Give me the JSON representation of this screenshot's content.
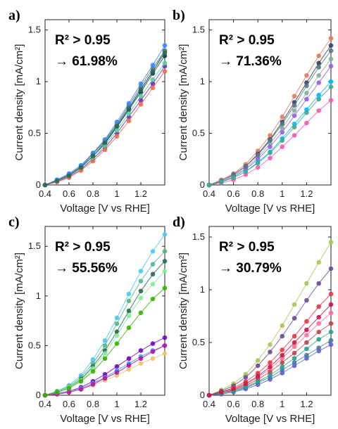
{
  "chart_data": [
    {
      "panel": "a)",
      "type": "scatter",
      "xlabel": "Voltage [V vs RHE]",
      "ylabel": "Current density [mA/cm²]",
      "xlim": [
        0.4,
        1.4
      ],
      "ylim": [
        0,
        1.6
      ],
      "xticks": [
        "0.4",
        "0.6",
        "0.8",
        "1",
        "1.2"
      ],
      "xtick_values": [
        0.4,
        0.6,
        0.8,
        1.0,
        1.2
      ],
      "yticks": [
        "0",
        "0.5",
        "1",
        "1.5"
      ],
      "ytick_values": [
        0,
        0.5,
        1.0,
        1.5
      ],
      "annotation_r2": "R² > 0.95",
      "annotation_pct": "→ 61.98%",
      "x": [
        0.4,
        0.5,
        0.6,
        0.7,
        0.8,
        0.9,
        1.0,
        1.1,
        1.2,
        1.3,
        1.4
      ],
      "series": [
        {
          "color": "#2a9d8f",
          "values": [
            0.0,
            0.05,
            0.1,
            0.18,
            0.3,
            0.42,
            0.58,
            0.75,
            0.93,
            1.1,
            1.3
          ]
        },
        {
          "color": "#1d3557",
          "values": [
            0.0,
            0.04,
            0.09,
            0.17,
            0.28,
            0.4,
            0.56,
            0.73,
            0.9,
            1.08,
            1.25
          ]
        },
        {
          "color": "#7b2cbf",
          "values": [
            0.0,
            0.03,
            0.08,
            0.15,
            0.25,
            0.36,
            0.5,
            0.66,
            0.82,
            0.98,
            1.15
          ]
        },
        {
          "color": "#57cc99",
          "values": [
            0.0,
            0.04,
            0.09,
            0.16,
            0.26,
            0.38,
            0.53,
            0.69,
            0.86,
            1.02,
            1.18
          ]
        },
        {
          "color": "#6c757d",
          "values": [
            0.0,
            0.04,
            0.1,
            0.18,
            0.3,
            0.43,
            0.59,
            0.77,
            0.95,
            1.13,
            1.3
          ]
        },
        {
          "color": "#e76f51",
          "values": [
            0.0,
            0.03,
            0.07,
            0.14,
            0.23,
            0.34,
            0.47,
            0.62,
            0.78,
            0.94,
            1.1
          ]
        },
        {
          "color": "#3a86ff",
          "values": [
            0.0,
            0.05,
            0.11,
            0.19,
            0.31,
            0.44,
            0.61,
            0.79,
            0.98,
            1.16,
            1.35
          ]
        },
        {
          "color": "#2d6a4f",
          "values": [
            0.0,
            0.04,
            0.09,
            0.17,
            0.28,
            0.41,
            0.57,
            0.74,
            0.92,
            1.1,
            1.28
          ]
        }
      ]
    },
    {
      "panel": "b)",
      "type": "scatter",
      "xlabel": "Voltage [V vs RHE]",
      "ylabel": "Current density [mA/cm²]",
      "xlim": [
        0.4,
        1.4
      ],
      "ylim": [
        0,
        1.6
      ],
      "xticks": [
        "0.4",
        "0.6",
        "0.8",
        "1",
        "1.2"
      ],
      "xtick_values": [
        0.4,
        0.6,
        0.8,
        1.0,
        1.2
      ],
      "yticks": [
        "0",
        "0.5",
        "1",
        "1.5"
      ],
      "ytick_values": [
        0,
        0.5,
        1.0,
        1.5
      ],
      "annotation_r2": "R² > 0.95",
      "annotation_pct": "→ 71.36%",
      "x": [
        0.4,
        0.5,
        0.6,
        0.7,
        0.8,
        0.9,
        1.0,
        1.1,
        1.2,
        1.3,
        1.4
      ],
      "series": [
        {
          "color": "#e07a5f",
          "values": [
            0.0,
            0.05,
            0.11,
            0.2,
            0.33,
            0.48,
            0.66,
            0.86,
            1.06,
            1.25,
            1.42
          ]
        },
        {
          "color": "#3d405b",
          "values": [
            0.0,
            0.04,
            0.1,
            0.18,
            0.3,
            0.44,
            0.61,
            0.8,
            0.99,
            1.18,
            1.35
          ]
        },
        {
          "color": "#81b29a",
          "values": [
            0.0,
            0.04,
            0.09,
            0.16,
            0.27,
            0.4,
            0.55,
            0.72,
            0.89,
            1.06,
            1.22
          ]
        },
        {
          "color": "#9b5de5",
          "values": [
            0.0,
            0.03,
            0.08,
            0.15,
            0.25,
            0.37,
            0.51,
            0.67,
            0.83,
            0.99,
            1.15
          ]
        },
        {
          "color": "#f15bb5",
          "values": [
            0.0,
            0.02,
            0.05,
            0.1,
            0.17,
            0.26,
            0.37,
            0.48,
            0.6,
            0.72,
            0.82
          ]
        },
        {
          "color": "#00bbf9",
          "values": [
            0.0,
            0.03,
            0.07,
            0.13,
            0.22,
            0.32,
            0.45,
            0.59,
            0.73,
            0.87,
            1.0
          ]
        },
        {
          "color": "#577590",
          "values": [
            0.0,
            0.04,
            0.1,
            0.18,
            0.29,
            0.43,
            0.59,
            0.77,
            0.96,
            1.14,
            1.3
          ]
        },
        {
          "color": "#43aa8b",
          "values": [
            0.0,
            0.03,
            0.07,
            0.13,
            0.21,
            0.31,
            0.43,
            0.56,
            0.7,
            0.83,
            0.95
          ]
        }
      ]
    },
    {
      "panel": "c)",
      "type": "scatter",
      "xlabel": "Voltage [V vs RHE]",
      "ylabel": "Current density [mA/cm²]",
      "xlim": [
        0.4,
        1.4
      ],
      "ylim": [
        0,
        1.7
      ],
      "xticks": [
        "0.4",
        "0.6",
        "0.8",
        "1",
        "1.2"
      ],
      "xtick_values": [
        0.4,
        0.6,
        0.8,
        1.0,
        1.2
      ],
      "yticks": [
        "0",
        "0.5",
        "1",
        "1.5"
      ],
      "ytick_values": [
        0,
        0.5,
        1.0,
        1.5
      ],
      "annotation_r2": "R² > 0.95",
      "annotation_pct": "→ 55.56%",
      "x": [
        0.4,
        0.5,
        0.6,
        0.7,
        0.8,
        0.9,
        1.0,
        1.1,
        1.2,
        1.3,
        1.4
      ],
      "series": [
        {
          "color": "#4cc9f0",
          "values": [
            0.0,
            0.04,
            0.1,
            0.2,
            0.36,
            0.55,
            0.78,
            1.02,
            1.25,
            1.45,
            1.62
          ]
        },
        {
          "color": "#52b788",
          "values": [
            0.0,
            0.04,
            0.09,
            0.18,
            0.32,
            0.5,
            0.72,
            0.95,
            1.15,
            1.32,
            1.45
          ]
        },
        {
          "color": "#2d6a4f",
          "values": [
            0.0,
            0.03,
            0.08,
            0.16,
            0.29,
            0.45,
            0.64,
            0.85,
            1.05,
            1.22,
            1.35
          ]
        },
        {
          "color": "#80ed99",
          "values": [
            0.0,
            0.03,
            0.08,
            0.15,
            0.27,
            0.42,
            0.6,
            0.8,
            0.98,
            1.12,
            1.25
          ]
        },
        {
          "color": "#7209b7",
          "values": [
            0.0,
            0.02,
            0.04,
            0.08,
            0.14,
            0.21,
            0.29,
            0.37,
            0.45,
            0.52,
            0.58
          ]
        },
        {
          "color": "#4895ef",
          "values": [
            0.0,
            0.02,
            0.04,
            0.07,
            0.12,
            0.18,
            0.25,
            0.32,
            0.39,
            0.45,
            0.5
          ]
        },
        {
          "color": "#e9c46a",
          "values": [
            0.0,
            0.01,
            0.03,
            0.06,
            0.1,
            0.15,
            0.2,
            0.26,
            0.32,
            0.37,
            0.42
          ]
        },
        {
          "color": "#b5179e",
          "values": [
            0.0,
            0.01,
            0.03,
            0.06,
            0.11,
            0.17,
            0.23,
            0.3,
            0.37,
            0.44,
            0.5
          ]
        },
        {
          "color": "#38b000",
          "values": [
            0.0,
            0.03,
            0.07,
            0.14,
            0.24,
            0.37,
            0.52,
            0.68,
            0.83,
            0.97,
            1.08
          ]
        }
      ]
    },
    {
      "panel": "d)",
      "type": "scatter",
      "xlabel": "Voltage [V vs RHE]",
      "ylabel": "Current density [mA/cm²]",
      "xlim": [
        0.4,
        1.4
      ],
      "ylim": [
        0,
        1.6
      ],
      "xticks": [
        "0.4",
        "0.6",
        "0.8",
        "1",
        "1.2"
      ],
      "xtick_values": [
        0.4,
        0.6,
        0.8,
        1.0,
        1.2
      ],
      "yticks": [
        "0",
        "0.5",
        "1",
        "1.5"
      ],
      "ytick_values": [
        0,
        0.5,
        1.0,
        1.5
      ],
      "annotation_r2": "R² > 0.95",
      "annotation_pct": "→ 30.79%",
      "x": [
        0.4,
        0.5,
        0.6,
        0.7,
        0.8,
        0.9,
        1.0,
        1.1,
        1.2,
        1.3,
        1.4
      ],
      "series": [
        {
          "color": "#a7c957",
          "values": [
            0.0,
            0.05,
            0.11,
            0.2,
            0.33,
            0.48,
            0.66,
            0.86,
            1.06,
            1.26,
            1.45
          ]
        },
        {
          "color": "#6a4c93",
          "values": [
            0.0,
            0.04,
            0.09,
            0.17,
            0.28,
            0.41,
            0.56,
            0.73,
            0.9,
            1.06,
            1.2
          ]
        },
        {
          "color": "#e63946",
          "values": [
            0.0,
            0.03,
            0.07,
            0.13,
            0.21,
            0.31,
            0.43,
            0.56,
            0.7,
            0.84,
            0.96
          ]
        },
        {
          "color": "#ff6b9d",
          "values": [
            0.0,
            0.02,
            0.05,
            0.1,
            0.17,
            0.25,
            0.35,
            0.46,
            0.57,
            0.68,
            0.78
          ]
        },
        {
          "color": "#457b9d",
          "values": [
            0.0,
            0.02,
            0.04,
            0.07,
            0.12,
            0.17,
            0.24,
            0.31,
            0.38,
            0.45,
            0.52
          ]
        },
        {
          "color": "#5e60ce",
          "values": [
            0.0,
            0.01,
            0.03,
            0.06,
            0.1,
            0.15,
            0.21,
            0.28,
            0.35,
            0.42,
            0.48
          ]
        },
        {
          "color": "#bc4749",
          "values": [
            0.0,
            0.02,
            0.05,
            0.09,
            0.15,
            0.22,
            0.31,
            0.4,
            0.5,
            0.6,
            0.68
          ]
        },
        {
          "color": "#2a9d8f",
          "values": [
            0.0,
            0.02,
            0.04,
            0.08,
            0.13,
            0.19,
            0.27,
            0.35,
            0.44,
            0.53,
            0.6
          ]
        },
        {
          "color": "#c9184a",
          "values": [
            0.0,
            0.03,
            0.06,
            0.11,
            0.18,
            0.27,
            0.38,
            0.5,
            0.62,
            0.74,
            0.86
          ]
        }
      ]
    }
  ]
}
